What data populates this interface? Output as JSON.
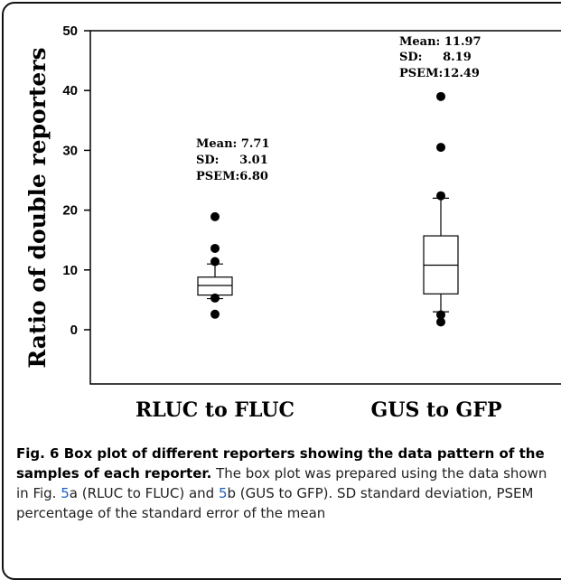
{
  "chart_data": {
    "type": "box",
    "ylabel": "Ratio of double reporters",
    "ylim": [
      -8,
      50
    ],
    "yticks": [
      0,
      10,
      20,
      30,
      40,
      50
    ],
    "categories": [
      "RLUC to FLUC",
      "GUS to GFP"
    ],
    "boxes": [
      {
        "category": "RLUC to FLUC",
        "whisker_low": 5.2,
        "q1": 5.8,
        "median": 7.4,
        "q3": 8.8,
        "whisker_high": 11.0,
        "outliers": [
          2.6,
          5.3,
          11.4,
          13.6,
          18.9
        ],
        "stats": {
          "mean": "Mean: 7.71",
          "sd": "SD:     3.01",
          "psem": "PSEM:6.80"
        }
      },
      {
        "category": "GUS to GFP",
        "whisker_low": 3.0,
        "q1": 6.0,
        "median": 10.8,
        "q3": 15.7,
        "whisker_high": 22.0,
        "outliers": [
          1.3,
          2.5,
          22.4,
          30.5,
          39.0
        ],
        "stats": {
          "mean": "Mean: 11.97",
          "sd": "SD:     8.19",
          "psem": "PSEM:12.49"
        }
      }
    ]
  },
  "caption": {
    "title": "Fig. 6 Box plot of different reporters showing the data pattern of the samples of each reporter.",
    "text_1": " The box plot was prepared using the data shown in Fig. ",
    "ref_a": "5",
    "text_2": "a (RLUC to FLUC) and ",
    "ref_b": "5",
    "text_3": "b (GUS to GFP). SD standard deviation, PSEM percentage of the standard error of the mean"
  }
}
